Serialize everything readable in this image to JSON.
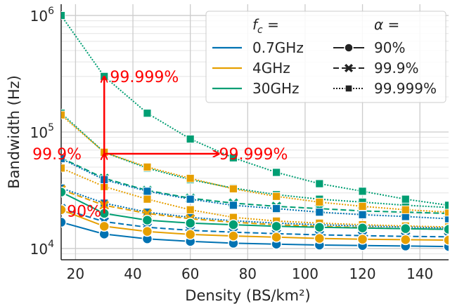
{
  "chart_data": {
    "type": "line",
    "xlabel": "Density (BS/km²)",
    "ylabel": "Bandwidth (Hz)",
    "xlim": [
      15,
      150
    ],
    "ylim": [
      8000,
      1250000
    ],
    "yscale": "log",
    "grid": true,
    "x_ticks": [
      20,
      40,
      60,
      80,
      100,
      120,
      140
    ],
    "y_ticks": [
      {
        "value": 10000,
        "base": "10",
        "exp": "4"
      },
      {
        "value": 100000,
        "base": "10",
        "exp": "5"
      },
      {
        "value": 1000000,
        "base": "10",
        "exp": "6"
      }
    ],
    "x": [
      15,
      30,
      45,
      60,
      75,
      90,
      105,
      120,
      135,
      150
    ],
    "legend": {
      "position": "top-right",
      "fc_header": "f",
      "fc_header_sub": "c",
      "fc_header_tail": " =",
      "alpha_header": "α =",
      "frequencies": [
        {
          "label": "0.7GHz",
          "color": "#0072b2"
        },
        {
          "label": "4GHz",
          "color": "#e69f00"
        },
        {
          "label": "30GHz",
          "color": "#009e73"
        }
      ],
      "reliabilities": [
        {
          "label": "90%",
          "marker": "circle",
          "dash": "solid"
        },
        {
          "label": "99.9%",
          "marker": "x",
          "dash": "dashed"
        },
        {
          "label": "99.999%",
          "marker": "square",
          "dash": "dotted"
        }
      ]
    },
    "series": [
      {
        "freq": 0,
        "rel": 0,
        "values": [
          16800,
          13300,
          12100,
          11500,
          11100,
          10900,
          10700,
          10600,
          10500,
          10400
        ]
      },
      {
        "freq": 0,
        "rel": 1,
        "values": [
          22000,
          17000,
          15200,
          14300,
          13800,
          13400,
          13100,
          12900,
          12700,
          12600
        ]
      },
      {
        "freq": 0,
        "rel": 2,
        "values": [
          33000,
          24500,
          20500,
          18500,
          17300,
          16500,
          16000,
          15600,
          15300,
          15000
        ]
      },
      {
        "freq": 1,
        "rel": 0,
        "values": [
          21500,
          15500,
          14000,
          13200,
          12800,
          12500,
          12200,
          12000,
          11900,
          11800
        ]
      },
      {
        "freq": 1,
        "rel": 1,
        "values": [
          32000,
          23500,
          20000,
          18000,
          16800,
          16000,
          15500,
          15100,
          14800,
          14600
        ]
      },
      {
        "freq": 1,
        "rel": 2,
        "values": [
          49000,
          34000,
          26500,
          21500,
          18500,
          17200,
          16500,
          16000,
          15600,
          15300
        ]
      },
      {
        "freq": 2,
        "rel": 0,
        "values": [
          30500,
          20000,
          17500,
          16500,
          16000,
          15500,
          15200,
          15000,
          14800,
          14600
        ]
      },
      {
        "freq": 2,
        "rel": 1,
        "values": [
          60000,
          40000,
          31500,
          27000,
          24500,
          23000,
          22000,
          21000,
          20500,
          20000
        ]
      },
      {
        "freq": 2,
        "rel": 2,
        "values": [
          145000,
          67000,
          49000,
          39000,
          33000,
          29000,
          26500,
          25000,
          23500,
          22500
        ]
      },
      {
        "freq": 0,
        "rel": 2,
        "values": [
          59000,
          39000,
          31000,
          26500,
          23500,
          22000,
          20500,
          19500,
          18800,
          18000
        ]
      },
      {
        "freq": 1,
        "rel": 2,
        "values": [
          140000,
          67000,
          50000,
          40000,
          32500,
          28000,
          25000,
          23000,
          21500,
          20500
        ]
      },
      {
        "freq": 2,
        "rel": 2,
        "values": [
          1000000,
          300000,
          145000,
          87000,
          60000,
          45000,
          36000,
          31000,
          26500,
          23500
        ]
      }
    ],
    "annotations": [
      {
        "text": "99.999%",
        "x": 32,
        "y": 300000
      },
      {
        "text": "99.9%",
        "x": 5,
        "y": 65000
      },
      {
        "text": "99.999%",
        "x": 70,
        "y": 65000
      },
      {
        "text": "90%",
        "x": 17,
        "y": 21000
      }
    ],
    "arrows": [
      {
        "from": [
          30,
          65000
        ],
        "to": [
          30,
          300000
        ]
      },
      {
        "from": [
          30,
          65000
        ],
        "to": [
          70,
          65000
        ]
      },
      {
        "from": [
          30,
          20000
        ],
        "to": [
          30,
          65000
        ]
      }
    ],
    "annotation_color": "#ff0000"
  }
}
